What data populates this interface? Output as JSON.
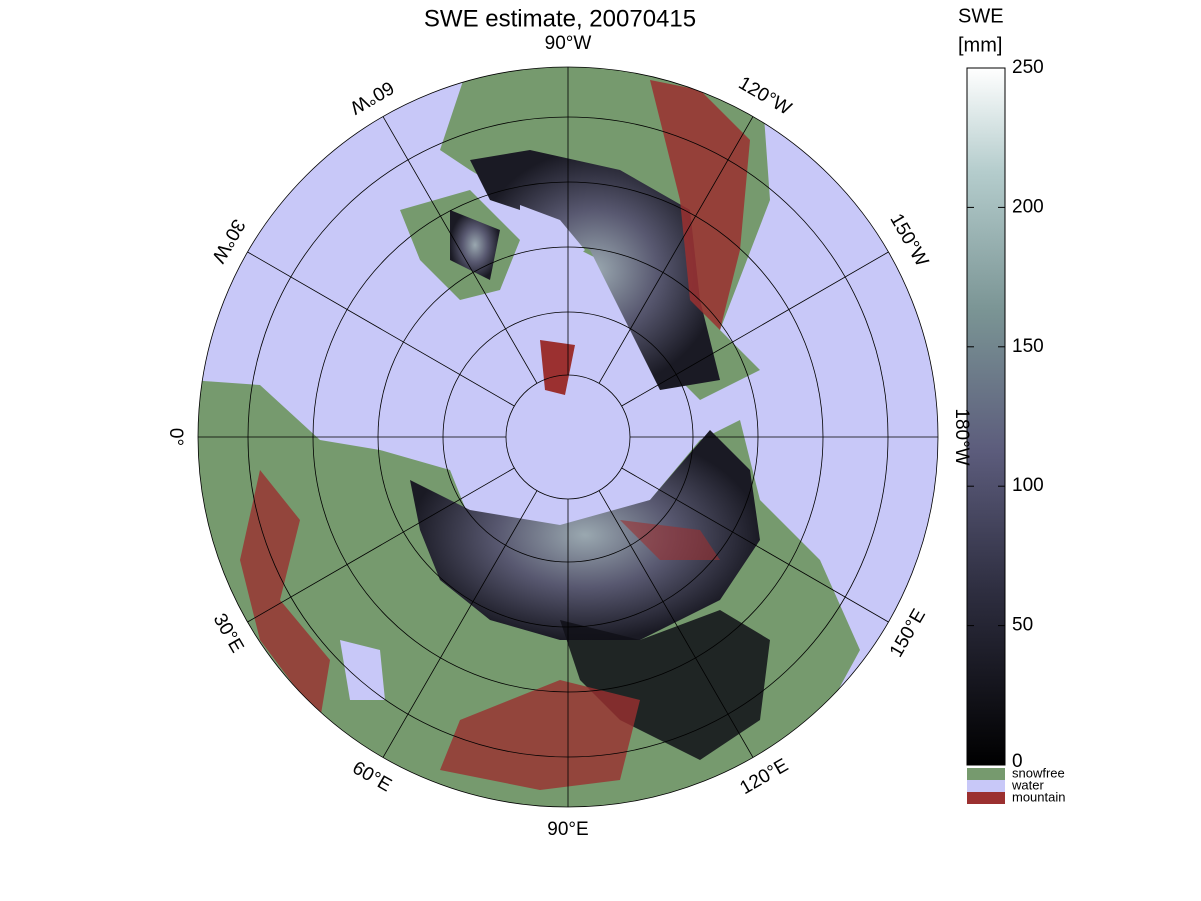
{
  "title": "SWE estimate, 20070415",
  "longitude_labels": [
    "90°W",
    "120°W",
    "150°W",
    "180°W",
    "150°E",
    "120°E",
    "90°E",
    "60°E",
    "30°E",
    "0°",
    "30°W",
    "60°W"
  ],
  "colorbar": {
    "title": [
      "SWE",
      "[mm]"
    ],
    "lim": [
      0,
      250
    ],
    "ticks": [
      0,
      50,
      100,
      150,
      200,
      250
    ]
  },
  "legend": [
    {
      "name": "snowfree",
      "color": "#769a6e"
    },
    {
      "name": "water",
      "color": "#c8c8f8"
    },
    {
      "name": "mountain",
      "color": "#9b3030"
    }
  ]
}
